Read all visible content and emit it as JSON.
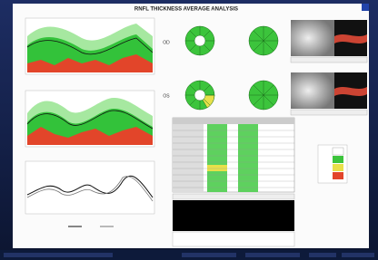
{
  "header": {
    "title": "RNFL THICKNESS AVERAGE ANALYSIS"
  },
  "eyes": [
    {
      "label": "OD"
    },
    {
      "label": "OS"
    }
  ]
}
